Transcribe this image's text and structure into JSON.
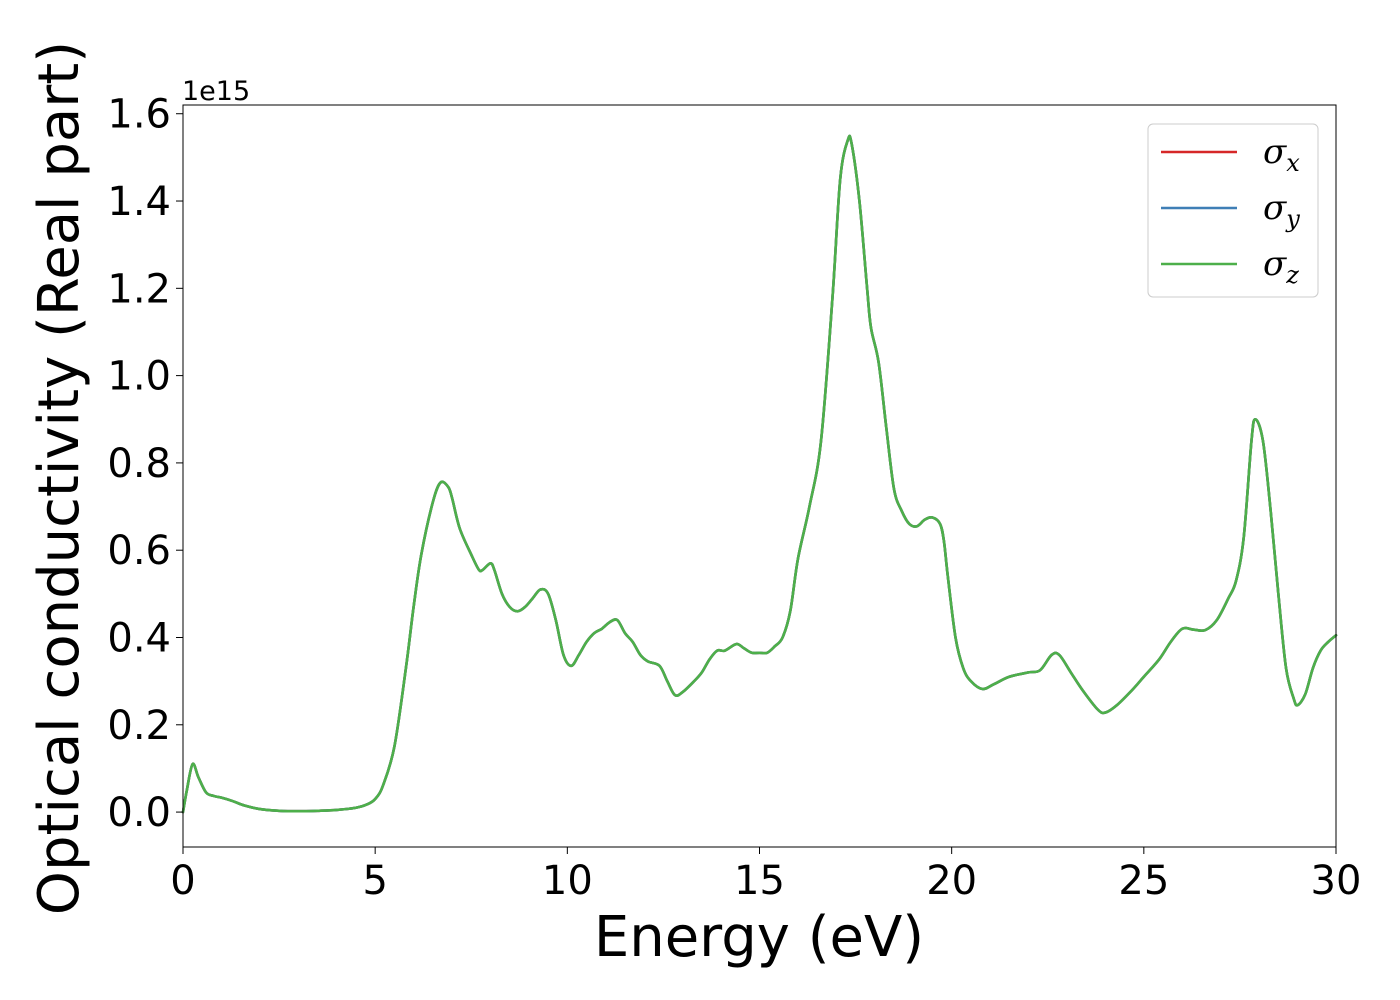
{
  "chart_data": {
    "type": "line",
    "title": "",
    "xlabel": "Energy (eV)",
    "ylabel": "Optical conductivity (Real part)",
    "y_offset_label": "1e15",
    "xlim": [
      0,
      30
    ],
    "ylim": [
      -0.08,
      1.62
    ],
    "x_ticks": [
      0,
      5,
      10,
      15,
      20,
      25,
      30
    ],
    "x_tick_labels": [
      "0",
      "5",
      "10",
      "15",
      "20",
      "25",
      "30"
    ],
    "y_ticks": [
      0.0,
      0.2,
      0.4,
      0.6,
      0.8,
      1.0,
      1.2,
      1.4,
      1.6
    ],
    "y_tick_labels": [
      "0.0",
      "0.2",
      "0.4",
      "0.6",
      "0.8",
      "1.0",
      "1.2",
      "1.4",
      "1.6"
    ],
    "grid": false,
    "legend_position": "top-right",
    "x": [
      0.0,
      0.1,
      0.25,
      0.4,
      0.6,
      0.8,
      1.0,
      1.3,
      1.6,
      2.0,
      2.5,
      3.0,
      3.5,
      4.0,
      4.5,
      4.8,
      5.0,
      5.2,
      5.5,
      5.8,
      6.0,
      6.2,
      6.5,
      6.7,
      6.9,
      7.0,
      7.2,
      7.5,
      7.7,
      7.8,
      8.0,
      8.1,
      8.3,
      8.5,
      8.7,
      8.9,
      9.1,
      9.3,
      9.5,
      9.7,
      9.9,
      10.1,
      10.3,
      10.5,
      10.7,
      10.9,
      11.1,
      11.3,
      11.5,
      11.7,
      11.9,
      12.1,
      12.4,
      12.6,
      12.8,
      13.0,
      13.3,
      13.5,
      13.7,
      13.9,
      14.1,
      14.4,
      14.6,
      14.8,
      15.0,
      15.2,
      15.4,
      15.6,
      15.8,
      16.0,
      16.3,
      16.6,
      16.9,
      17.1,
      17.3,
      17.4,
      17.6,
      17.8,
      17.9,
      18.1,
      18.3,
      18.5,
      18.7,
      18.9,
      19.1,
      19.3,
      19.5,
      19.7,
      19.8,
      19.9,
      20.1,
      20.3,
      20.5,
      20.8,
      21.1,
      21.5,
      22.0,
      22.3,
      22.6,
      22.8,
      23.1,
      23.4,
      23.8,
      24.0,
      24.3,
      24.7,
      25.0,
      25.4,
      25.7,
      26.0,
      26.3,
      26.6,
      26.9,
      27.2,
      27.4,
      27.6,
      27.8,
      27.9,
      28.1,
      28.3,
      28.5,
      28.7,
      28.9,
      29.0,
      29.2,
      29.4,
      29.6,
      29.8,
      30.0
    ],
    "series": [
      {
        "name": "σx",
        "symbol": "σ",
        "subscript": "x",
        "color": "#d62728",
        "values": [
          0.0,
          0.05,
          0.11,
          0.08,
          0.045,
          0.037,
          0.033,
          0.025,
          0.015,
          0.007,
          0.003,
          0.002,
          0.003,
          0.005,
          0.01,
          0.018,
          0.03,
          0.06,
          0.15,
          0.33,
          0.47,
          0.59,
          0.71,
          0.755,
          0.745,
          0.72,
          0.65,
          0.59,
          0.555,
          0.555,
          0.57,
          0.555,
          0.5,
          0.47,
          0.46,
          0.47,
          0.49,
          0.51,
          0.5,
          0.44,
          0.36,
          0.335,
          0.36,
          0.39,
          0.41,
          0.42,
          0.435,
          0.44,
          0.41,
          0.39,
          0.36,
          0.345,
          0.335,
          0.3,
          0.268,
          0.275,
          0.3,
          0.32,
          0.35,
          0.37,
          0.37,
          0.385,
          0.375,
          0.365,
          0.365,
          0.365,
          0.38,
          0.4,
          0.46,
          0.58,
          0.7,
          0.85,
          1.18,
          1.45,
          1.54,
          1.53,
          1.4,
          1.2,
          1.11,
          1.03,
          0.88,
          0.74,
          0.69,
          0.66,
          0.655,
          0.67,
          0.675,
          0.66,
          0.62,
          0.54,
          0.4,
          0.33,
          0.3,
          0.282,
          0.293,
          0.31,
          0.32,
          0.325,
          0.36,
          0.36,
          0.32,
          0.28,
          0.235,
          0.228,
          0.245,
          0.28,
          0.31,
          0.35,
          0.39,
          0.42,
          0.418,
          0.417,
          0.44,
          0.49,
          0.53,
          0.63,
          0.85,
          0.9,
          0.85,
          0.69,
          0.5,
          0.33,
          0.26,
          0.245,
          0.27,
          0.33,
          0.37,
          0.39,
          0.405
        ]
      },
      {
        "name": "σy",
        "symbol": "σ",
        "subscript": "y",
        "color": "#3f7fb6",
        "values": [
          0.0,
          0.05,
          0.11,
          0.08,
          0.045,
          0.037,
          0.033,
          0.025,
          0.015,
          0.007,
          0.003,
          0.002,
          0.003,
          0.005,
          0.01,
          0.018,
          0.03,
          0.06,
          0.15,
          0.33,
          0.47,
          0.59,
          0.71,
          0.755,
          0.745,
          0.72,
          0.65,
          0.59,
          0.555,
          0.555,
          0.57,
          0.555,
          0.5,
          0.47,
          0.46,
          0.47,
          0.49,
          0.51,
          0.5,
          0.44,
          0.36,
          0.335,
          0.36,
          0.39,
          0.41,
          0.42,
          0.435,
          0.44,
          0.41,
          0.39,
          0.36,
          0.345,
          0.335,
          0.3,
          0.268,
          0.275,
          0.3,
          0.32,
          0.35,
          0.37,
          0.37,
          0.385,
          0.375,
          0.365,
          0.365,
          0.365,
          0.38,
          0.4,
          0.46,
          0.58,
          0.7,
          0.85,
          1.18,
          1.45,
          1.54,
          1.53,
          1.4,
          1.2,
          1.11,
          1.03,
          0.88,
          0.74,
          0.69,
          0.66,
          0.655,
          0.67,
          0.675,
          0.66,
          0.62,
          0.54,
          0.4,
          0.33,
          0.3,
          0.282,
          0.293,
          0.31,
          0.32,
          0.325,
          0.36,
          0.36,
          0.32,
          0.28,
          0.235,
          0.228,
          0.245,
          0.28,
          0.31,
          0.35,
          0.39,
          0.42,
          0.418,
          0.417,
          0.44,
          0.49,
          0.53,
          0.63,
          0.85,
          0.9,
          0.85,
          0.69,
          0.5,
          0.33,
          0.26,
          0.245,
          0.27,
          0.33,
          0.37,
          0.39,
          0.405
        ]
      },
      {
        "name": "σz",
        "symbol": "σ",
        "subscript": "z",
        "color": "#4daf4a",
        "values": [
          0.0,
          0.05,
          0.11,
          0.08,
          0.045,
          0.037,
          0.033,
          0.025,
          0.015,
          0.007,
          0.003,
          0.002,
          0.003,
          0.005,
          0.01,
          0.018,
          0.03,
          0.06,
          0.15,
          0.33,
          0.47,
          0.59,
          0.71,
          0.755,
          0.745,
          0.72,
          0.65,
          0.59,
          0.555,
          0.555,
          0.57,
          0.555,
          0.5,
          0.47,
          0.46,
          0.47,
          0.49,
          0.51,
          0.5,
          0.44,
          0.36,
          0.335,
          0.36,
          0.39,
          0.41,
          0.42,
          0.435,
          0.44,
          0.41,
          0.39,
          0.36,
          0.345,
          0.335,
          0.3,
          0.268,
          0.275,
          0.3,
          0.32,
          0.35,
          0.37,
          0.37,
          0.385,
          0.375,
          0.365,
          0.365,
          0.365,
          0.38,
          0.4,
          0.46,
          0.58,
          0.7,
          0.85,
          1.18,
          1.45,
          1.54,
          1.53,
          1.4,
          1.2,
          1.11,
          1.03,
          0.88,
          0.74,
          0.69,
          0.66,
          0.655,
          0.67,
          0.675,
          0.66,
          0.62,
          0.54,
          0.4,
          0.33,
          0.3,
          0.282,
          0.293,
          0.31,
          0.32,
          0.325,
          0.36,
          0.36,
          0.32,
          0.28,
          0.235,
          0.228,
          0.245,
          0.28,
          0.31,
          0.35,
          0.39,
          0.42,
          0.418,
          0.417,
          0.44,
          0.49,
          0.53,
          0.63,
          0.85,
          0.9,
          0.85,
          0.69,
          0.5,
          0.33,
          0.26,
          0.245,
          0.27,
          0.33,
          0.37,
          0.39,
          0.405
        ]
      }
    ]
  }
}
